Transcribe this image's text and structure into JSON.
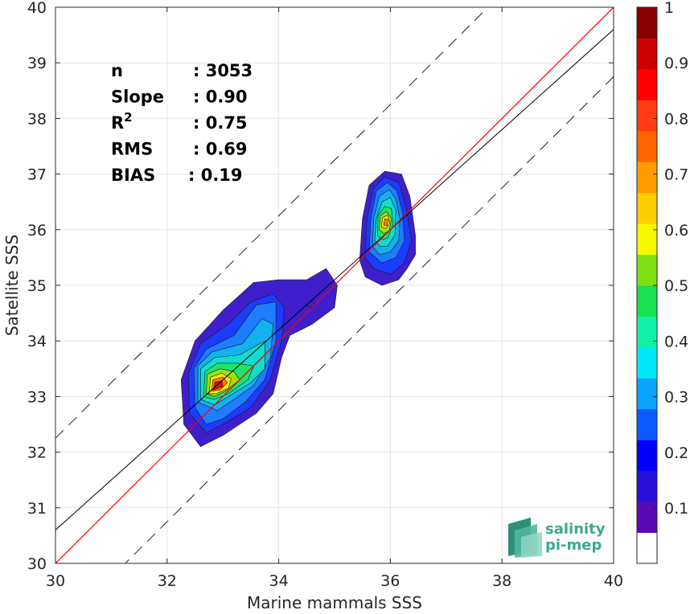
{
  "chart_data": {
    "type": "heatmap",
    "title": "",
    "xlabel": "Marine mammals SSS",
    "ylabel": "Satellite SSS",
    "xlim": [
      30,
      40
    ],
    "ylim": [
      30,
      40
    ],
    "x_ticks": [
      30,
      32,
      34,
      36,
      38,
      40
    ],
    "y_ticks": [
      30,
      31,
      32,
      33,
      34,
      35,
      36,
      37,
      38,
      39,
      40
    ],
    "grid": true,
    "stats": [
      {
        "label": "n",
        "value": ": 3053"
      },
      {
        "label": "Slope",
        "value": ": 0.90"
      },
      {
        "label": "R",
        "sup": "2",
        "value": ": 0.75"
      },
      {
        "label": "RMS",
        "value": ": 0.69"
      },
      {
        "label": "BIAS",
        "value": ": 0.19"
      }
    ],
    "reference_lines": {
      "one_to_one": {
        "slope": 1,
        "intercept": 0,
        "color": "#ff0000"
      },
      "fit": {
        "slope": 0.9,
        "intercept": 3.6,
        "color": "#000000"
      },
      "bounds": [
        {
          "slope": 1,
          "intercept": 2.25,
          "style": "dashed"
        },
        {
          "slope": 1,
          "intercept": -1.25,
          "style": "dashed"
        }
      ]
    },
    "clusters": [
      {
        "levels": [
          [
            [
              32.3,
              32.5
            ],
            [
              32.25,
              33.3
            ],
            [
              32.5,
              34.0
            ],
            [
              33.0,
              34.55
            ],
            [
              33.55,
              35.05
            ],
            [
              34.0,
              35.1
            ],
            [
              34.5,
              35.1
            ],
            [
              34.85,
              35.3
            ],
            [
              35.05,
              35.0
            ],
            [
              35.0,
              34.6
            ],
            [
              34.6,
              34.3
            ],
            [
              34.2,
              34.1
            ],
            [
              34.05,
              33.7
            ],
            [
              33.9,
              33.05
            ],
            [
              33.6,
              32.7
            ],
            [
              33.0,
              32.3
            ],
            [
              32.6,
              32.1
            ]
          ],
          [
            [
              32.4,
              32.7
            ],
            [
              32.38,
              33.4
            ],
            [
              32.6,
              33.95
            ],
            [
              33.1,
              34.3
            ],
            [
              33.5,
              34.7
            ],
            [
              33.9,
              34.85
            ],
            [
              34.1,
              34.6
            ],
            [
              34.05,
              34.0
            ],
            [
              33.85,
              33.3
            ],
            [
              33.5,
              32.8
            ],
            [
              33.0,
              32.5
            ],
            [
              32.7,
              32.35
            ]
          ],
          [
            [
              32.5,
              32.8
            ],
            [
              32.48,
              33.5
            ],
            [
              32.7,
              33.85
            ],
            [
              33.2,
              34.1
            ],
            [
              33.6,
              34.65
            ],
            [
              33.95,
              34.7
            ],
            [
              33.95,
              34.0
            ],
            [
              33.75,
              33.3
            ],
            [
              33.4,
              32.9
            ],
            [
              33.0,
              32.6
            ],
            [
              32.7,
              32.5
            ]
          ],
          [
            [
              32.55,
              32.9
            ],
            [
              32.55,
              33.55
            ],
            [
              32.8,
              33.8
            ],
            [
              33.35,
              33.95
            ],
            [
              33.7,
              34.4
            ],
            [
              33.9,
              34.3
            ],
            [
              33.85,
              33.7
            ],
            [
              33.55,
              33.2
            ],
            [
              33.2,
              32.95
            ],
            [
              32.9,
              32.75
            ]
          ],
          [
            [
              32.6,
              32.95
            ],
            [
              32.6,
              33.5
            ],
            [
              32.85,
              33.7
            ],
            [
              33.3,
              33.75
            ],
            [
              33.75,
              34.0
            ],
            [
              33.75,
              33.5
            ],
            [
              33.5,
              33.25
            ],
            [
              33.1,
              33.0
            ],
            [
              32.85,
              32.85
            ]
          ],
          [
            [
              32.65,
              33.0
            ],
            [
              32.68,
              33.45
            ],
            [
              32.9,
              33.6
            ],
            [
              33.25,
              33.6
            ],
            [
              33.55,
              33.55
            ],
            [
              33.45,
              33.3
            ],
            [
              33.1,
              33.05
            ],
            [
              32.85,
              32.95
            ]
          ],
          [
            [
              32.7,
              33.05
            ],
            [
              32.72,
              33.4
            ],
            [
              32.95,
              33.5
            ],
            [
              33.2,
              33.45
            ],
            [
              33.3,
              33.3
            ],
            [
              33.05,
              33.1
            ],
            [
              32.85,
              33.0
            ]
          ],
          [
            [
              32.75,
              33.05
            ],
            [
              32.78,
              33.35
            ],
            [
              32.98,
              33.42
            ],
            [
              33.15,
              33.32
            ],
            [
              33.1,
              33.15
            ],
            [
              32.88,
              33.05
            ]
          ],
          [
            [
              32.8,
              33.1
            ],
            [
              32.82,
              33.3
            ],
            [
              33.0,
              33.35
            ],
            [
              33.08,
              33.25
            ],
            [
              32.95,
              33.12
            ]
          ],
          [
            [
              32.83,
              33.12
            ],
            [
              32.86,
              33.26
            ],
            [
              32.98,
              33.28
            ],
            [
              33.0,
              33.18
            ]
          ]
        ]
      },
      {
        "levels": [
          [
            [
              35.45,
              35.45
            ],
            [
              35.5,
              36.2
            ],
            [
              35.62,
              36.8
            ],
            [
              35.9,
              37.05
            ],
            [
              36.2,
              37.0
            ],
            [
              36.35,
              36.6
            ],
            [
              36.45,
              35.9
            ],
            [
              36.45,
              35.55
            ],
            [
              36.3,
              35.3
            ],
            [
              36.15,
              35.1
            ],
            [
              35.85,
              35.0
            ],
            [
              35.55,
              35.15
            ]
          ],
          [
            [
              35.55,
              35.5
            ],
            [
              35.58,
              36.2
            ],
            [
              35.7,
              36.75
            ],
            [
              35.9,
              36.95
            ],
            [
              36.15,
              36.85
            ],
            [
              36.28,
              36.4
            ],
            [
              36.38,
              35.8
            ],
            [
              36.25,
              35.4
            ],
            [
              36.0,
              35.2
            ],
            [
              35.7,
              35.3
            ]
          ],
          [
            [
              35.62,
              35.6
            ],
            [
              35.65,
              36.2
            ],
            [
              35.75,
              36.7
            ],
            [
              35.95,
              36.85
            ],
            [
              36.12,
              36.7
            ],
            [
              36.22,
              36.3
            ],
            [
              36.25,
              35.8
            ],
            [
              36.1,
              35.5
            ],
            [
              35.85,
              35.4
            ]
          ],
          [
            [
              35.68,
              35.7
            ],
            [
              35.7,
              36.2
            ],
            [
              35.8,
              36.6
            ],
            [
              35.98,
              36.72
            ],
            [
              36.1,
              36.55
            ],
            [
              36.17,
              36.2
            ],
            [
              36.15,
              35.8
            ],
            [
              36.0,
              35.6
            ],
            [
              35.8,
              35.55
            ]
          ],
          [
            [
              35.72,
              35.8
            ],
            [
              35.75,
              36.2
            ],
            [
              35.85,
              36.5
            ],
            [
              36.0,
              36.58
            ],
            [
              36.1,
              36.35
            ],
            [
              36.08,
              35.9
            ],
            [
              35.95,
              35.7
            ],
            [
              35.82,
              35.7
            ]
          ],
          [
            [
              35.77,
              35.9
            ],
            [
              35.78,
              36.25
            ],
            [
              35.9,
              36.42
            ],
            [
              36.02,
              36.38
            ],
            [
              36.05,
              36.1
            ],
            [
              35.95,
              35.85
            ],
            [
              35.85,
              35.82
            ]
          ],
          [
            [
              35.8,
              36.0
            ],
            [
              35.82,
              36.25
            ],
            [
              35.93,
              36.33
            ],
            [
              36.02,
              36.2
            ],
            [
              35.98,
              35.98
            ],
            [
              35.88,
              35.93
            ]
          ],
          [
            [
              35.84,
              36.05
            ],
            [
              35.86,
              36.22
            ],
            [
              35.95,
              36.26
            ],
            [
              35.99,
              36.12
            ],
            [
              35.92,
              36.02
            ]
          ],
          [
            [
              35.88,
              36.08
            ],
            [
              35.9,
              36.2
            ],
            [
              35.96,
              36.18
            ],
            [
              35.94,
              36.07
            ]
          ]
        ]
      },
      {
        "levels": [
          [
            [
              34.5,
              34.66
            ],
            [
              34.6,
              34.72
            ],
            [
              34.66,
              34.65
            ],
            [
              34.56,
              34.6
            ]
          ]
        ]
      }
    ],
    "colorbar": {
      "ticks": [
        "0.1",
        "0.2",
        "0.3",
        "0.4",
        "0.5",
        "0.6",
        "0.7",
        "0.8",
        "0.9",
        "1"
      ],
      "colors": [
        "#ffffff",
        "#5a0ab4",
        "#2810d8",
        "#0000f8",
        "#0a5cff",
        "#0aa4ff",
        "#00e8f8",
        "#12f0a8",
        "#18e050",
        "#7ee012",
        "#f8f800",
        "#ffcc00",
        "#ff9c00",
        "#ff6400",
        "#ff3c14",
        "#ff0000",
        "#cc0000",
        "#880000"
      ]
    },
    "level_colors": [
      "#3f1fcc",
      "#1a3cff",
      "#1e7cff",
      "#14b0f0",
      "#10dcd0",
      "#1ee36a",
      "#9ae20e",
      "#ffe600",
      "#ff8000",
      "#d61010"
    ]
  },
  "logo": {
    "line1": "salinity",
    "line2": "pi-mep"
  }
}
